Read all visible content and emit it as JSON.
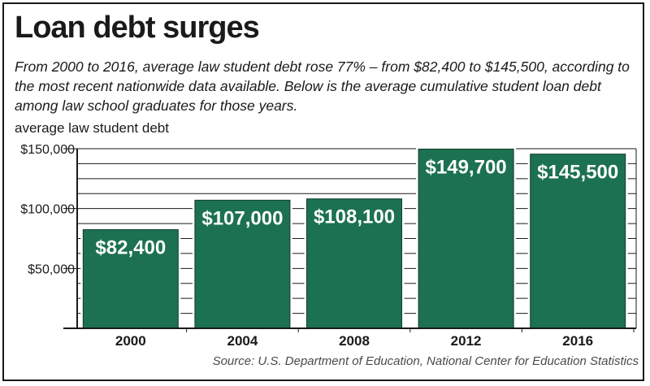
{
  "title": "Loan debt surges",
  "subtitle": "From 2000 to 2016, average law student debt rose 77% – from $82,400 to $145,500, according to the most recent nationwide data available. Below is the average cumulative student loan debt among law school graduates for those years.",
  "source": "Source: U.S. Department of Education, National Center for Education Statistics",
  "colors": {
    "bar": "#1c7150",
    "axis": "#1a1a1a",
    "grid": "#1a1a1a"
  },
  "chart_data": {
    "type": "bar",
    "title": "Loan debt surges",
    "ylabel": "average law student debt",
    "xlabel": "",
    "categories": [
      "2000",
      "2004",
      "2008",
      "2012",
      "2016"
    ],
    "values": [
      82400,
      107000,
      108100,
      149700,
      145500
    ],
    "data_labels": [
      "$82,400",
      "$107,000",
      "$108,100",
      "$149,700",
      "$145,500"
    ],
    "ylim": [
      0,
      150000
    ],
    "yticks": [
      50000,
      100000,
      150000
    ],
    "ytick_labels": [
      "$50,000",
      "$100,000",
      "$150,000"
    ],
    "grid": true
  }
}
